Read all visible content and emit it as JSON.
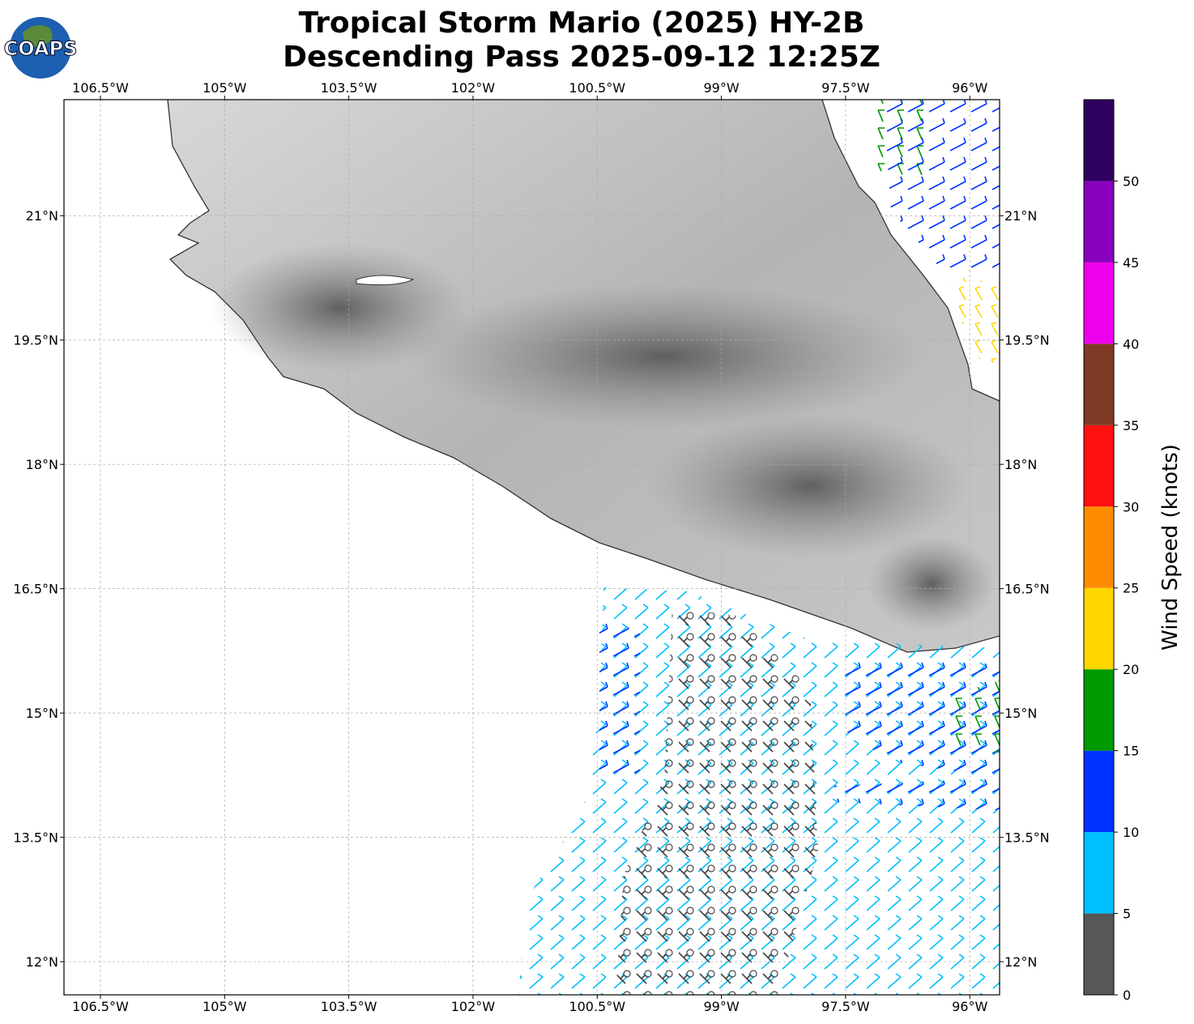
{
  "logo": "COAPS",
  "chart_data": {
    "type": "map",
    "title": [
      "Tropical Storm Mario (2025) HY-2B",
      "Descending Pass 2025-09-12 12:25Z"
    ],
    "xlim": [
      -106.94,
      -95.64
    ],
    "ylim": [
      11.6,
      22.4
    ],
    "xticks": [
      {
        "value": -106.5,
        "label": "106.5°W"
      },
      {
        "value": -105,
        "label": "105°W"
      },
      {
        "value": -103.5,
        "label": "103.5°W"
      },
      {
        "value": -102,
        "label": "102°W"
      },
      {
        "value": -100.5,
        "label": "100.5°W"
      },
      {
        "value": -99,
        "label": "99°W"
      },
      {
        "value": -97.5,
        "label": "97.5°W"
      },
      {
        "value": -96,
        "label": "96°W"
      }
    ],
    "yticks": [
      {
        "value": 12,
        "label": "12°N"
      },
      {
        "value": 13.5,
        "label": "13.5°N"
      },
      {
        "value": 15,
        "label": "15°N"
      },
      {
        "value": 16.5,
        "label": "16.5°N"
      },
      {
        "value": 18,
        "label": "18°N"
      },
      {
        "value": 19.5,
        "label": "19.5°N"
      },
      {
        "value": 21,
        "label": "21°N"
      }
    ],
    "grid": true,
    "colorbar": {
      "label": "Wind Speed (knots)",
      "bins": [
        0,
        5,
        10,
        15,
        20,
        25,
        30,
        35,
        40,
        45,
        50,
        55
      ],
      "colors": [
        "#575757",
        "#00bfff",
        "#0033ff",
        "#009900",
        "#ffd700",
        "#ff8c00",
        "#ff1010",
        "#7f3a26",
        "#ee00ee",
        "#8800bb",
        "#2e0060"
      ],
      "ticks": [
        0,
        5,
        10,
        15,
        20,
        25,
        30,
        35,
        40,
        45,
        50
      ]
    }
  }
}
